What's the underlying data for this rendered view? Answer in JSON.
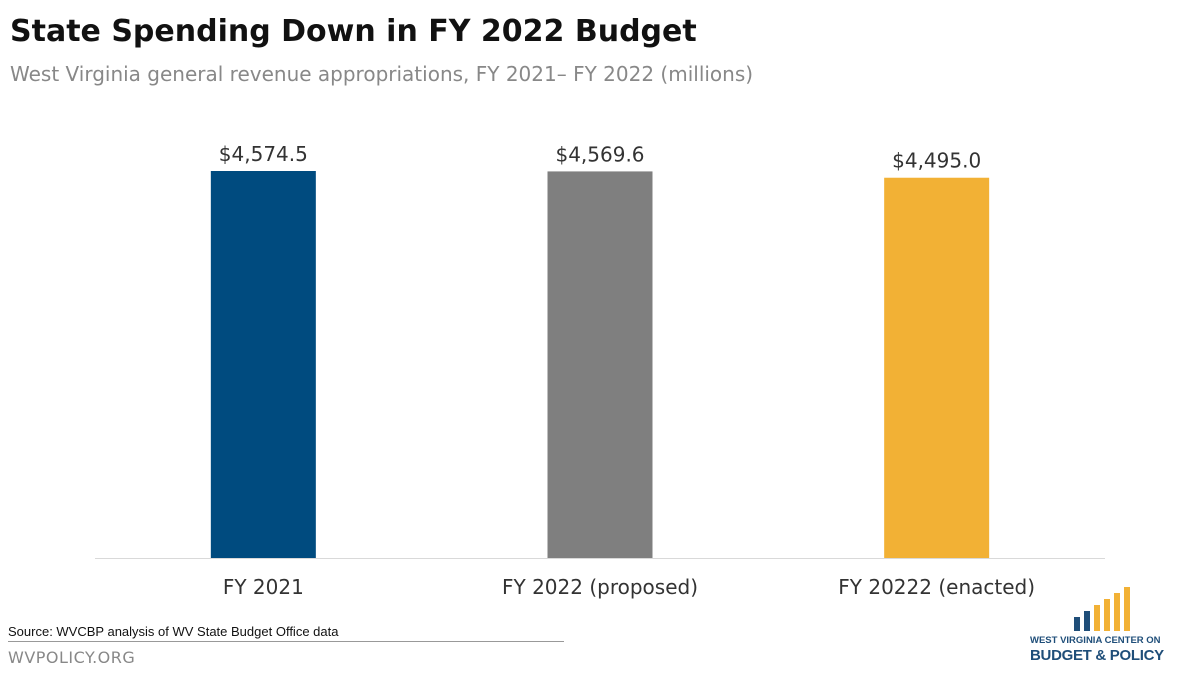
{
  "header": {
    "title": "State Spending Down in FY 2022 Budget",
    "subtitle": "West Virginia general revenue appropriations, FY 2021– FY 2022 (millions)"
  },
  "chart_data": {
    "type": "bar",
    "categories": [
      "FY 2021",
      "FY 2022 (proposed)",
      "FY 20222 (enacted)"
    ],
    "values": [
      4574.5,
      4569.6,
      4495.0
    ],
    "value_labels": [
      "$4,574.5",
      "$4,569.6",
      "$4,495.0"
    ],
    "colors": [
      "#004b7f",
      "#7f7f7f",
      "#f2b135"
    ],
    "ylim": [
      0,
      5000
    ],
    "grid": false,
    "legend": "none",
    "title": "State Spending Down in FY 2022 Budget",
    "xlabel": "",
    "ylabel": ""
  },
  "footer": {
    "source": "Source:  WVCBP analysis of WV State Budget Office data",
    "site": "WVPOLICY.ORG"
  },
  "logo": {
    "line1": "WEST VIRGINIA CENTER ON",
    "line2": "BUDGET & POLICY",
    "colors": [
      "#1f4e79",
      "#f2b135"
    ]
  }
}
